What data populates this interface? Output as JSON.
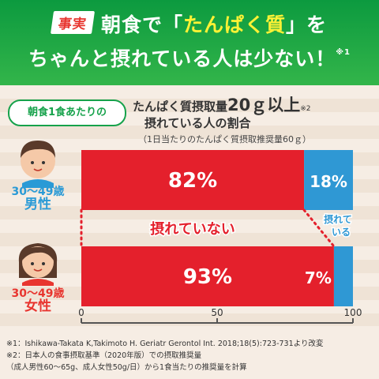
{
  "header": {
    "tag": "事実",
    "line1_pre": "朝食で「",
    "line1_highlight": "たんぱく質",
    "line1_post": "」を",
    "line2": "ちゃんと摂れている人は少ない！",
    "line2_note": "※1"
  },
  "badge": "朝食1食あたりの",
  "subtitle": {
    "line1_pre": "たんぱく質摂取量",
    "line1_big": "20ｇ以上",
    "line1_note": "※2",
    "line2": "摂れている人の割合",
    "line3": "（1日当たりのたんぱく質摂取推奨量60ｇ）"
  },
  "groups": [
    {
      "age": "30～49歳",
      "sex": "男性",
      "color": "#2a9ad6"
    },
    {
      "age": "30～49歳",
      "sex": "女性",
      "color": "#e8352f"
    }
  ],
  "chart_data": {
    "type": "bar",
    "orientation": "horizontal",
    "stacked": true,
    "categories": [
      "30～49歳 男性",
      "30～49歳 女性"
    ],
    "series": [
      {
        "name": "摂れていない",
        "values": [
          82,
          93
        ],
        "labels": [
          "82%",
          "93%"
        ],
        "color": "#e4202c"
      },
      {
        "name": "摂れている",
        "values": [
          18,
          7
        ],
        "labels": [
          "18%",
          "7%"
        ],
        "color": "#2f98d4"
      }
    ],
    "xlim": [
      0,
      100
    ],
    "xticks": [
      "0",
      "50",
      "100"
    ],
    "annotation_not": "摂れていない",
    "annotation_yes_line1": "摂れて",
    "annotation_yes_line2": "いる"
  },
  "footnotes": [
    "※1：Ishikawa-Takata K,Takimoto H. Geriatr Gerontol Int. 2018;18(5):723-731より改変",
    "※2：日本人の食事摂取基準（2020年版）での摂取推奨量",
    "（成人男性60～65g、成人女性50g/日）から1食当たりの推奨量を計算"
  ]
}
